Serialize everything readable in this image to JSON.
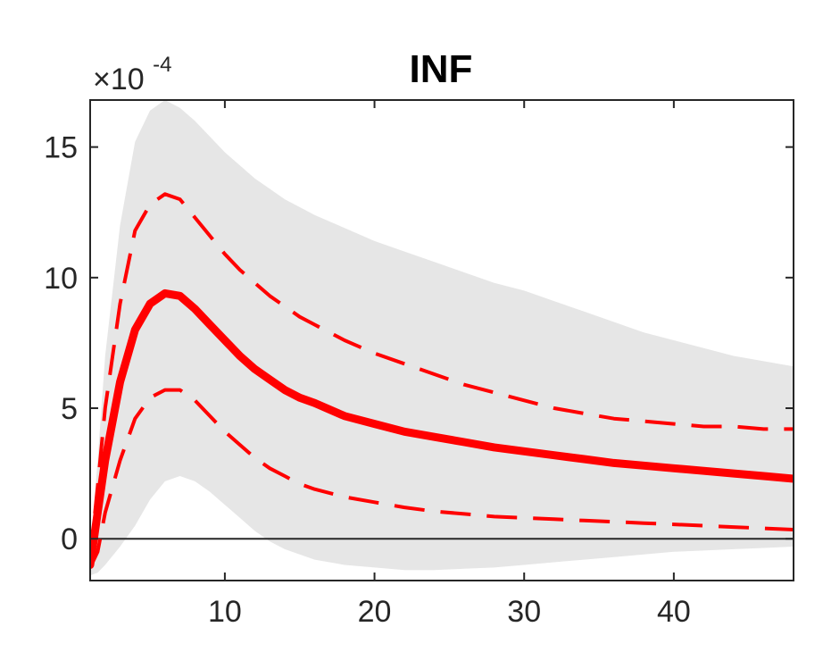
{
  "chart_data": {
    "type": "line",
    "title": "INF",
    "xlabel": "",
    "ylabel": "",
    "scale_multiplier": "×10",
    "scale_exponent": "-4",
    "xlim": [
      1,
      48
    ],
    "ylim": [
      -1.6,
      16.8
    ],
    "xticks": [
      10,
      20,
      30,
      40
    ],
    "yticks": [
      0,
      5,
      10,
      15
    ],
    "grid": false,
    "legend": "none",
    "zero_line": true,
    "colors": {
      "median": "#ff0000",
      "band_inner": "#ff0000",
      "band_outer": "#e6e6e6",
      "zero_line": "#262626",
      "axes": "#262626"
    },
    "x": [
      1,
      1.5,
      2,
      3,
      4,
      5,
      6,
      7,
      8,
      9,
      10,
      11,
      12,
      13,
      14,
      15,
      16,
      18,
      20,
      22,
      24,
      26,
      28,
      30,
      32,
      34,
      36,
      38,
      40,
      42,
      44,
      46,
      48
    ],
    "series": [
      {
        "role": "outer-band-upper",
        "values": [
          -0.6,
          3.0,
          7.0,
          12.0,
          15.2,
          16.4,
          16.8,
          16.5,
          16.0,
          15.4,
          14.8,
          14.3,
          13.8,
          13.4,
          13.0,
          12.7,
          12.4,
          11.9,
          11.4,
          11.0,
          10.6,
          10.2,
          9.8,
          9.5,
          9.1,
          8.7,
          8.3,
          7.9,
          7.6,
          7.3,
          7.0,
          6.8,
          6.6
        ]
      },
      {
        "role": "outer-band-lower",
        "values": [
          -1.4,
          -1.3,
          -1.0,
          -0.3,
          0.5,
          1.5,
          2.2,
          2.4,
          2.2,
          1.8,
          1.3,
          0.8,
          0.3,
          -0.1,
          -0.4,
          -0.6,
          -0.8,
          -1.0,
          -1.1,
          -1.2,
          -1.2,
          -1.15,
          -1.1,
          -1.0,
          -0.9,
          -0.8,
          -0.7,
          -0.6,
          -0.5,
          -0.45,
          -0.4,
          -0.35,
          -0.3
        ]
      },
      {
        "role": "upper-band",
        "style": "dashed",
        "values": [
          -0.8,
          2.0,
          5.0,
          9.0,
          11.8,
          12.8,
          13.2,
          13.0,
          12.3,
          11.6,
          10.9,
          10.3,
          9.8,
          9.3,
          8.9,
          8.5,
          8.2,
          7.6,
          7.1,
          6.7,
          6.3,
          5.9,
          5.6,
          5.3,
          5.0,
          4.8,
          4.6,
          4.5,
          4.4,
          4.3,
          4.3,
          4.2,
          4.2
        ]
      },
      {
        "role": "median",
        "style": "solid",
        "values": [
          -1.0,
          1.0,
          3.0,
          6.0,
          8.0,
          9.0,
          9.4,
          9.3,
          8.8,
          8.2,
          7.6,
          7.0,
          6.5,
          6.1,
          5.7,
          5.4,
          5.2,
          4.7,
          4.4,
          4.1,
          3.9,
          3.7,
          3.5,
          3.35,
          3.2,
          3.05,
          2.9,
          2.8,
          2.7,
          2.6,
          2.5,
          2.4,
          2.3
        ]
      },
      {
        "role": "lower-band",
        "style": "dashed",
        "values": [
          -1.1,
          -0.5,
          1.0,
          3.0,
          4.6,
          5.4,
          5.7,
          5.7,
          5.3,
          4.7,
          4.1,
          3.6,
          3.1,
          2.7,
          2.4,
          2.1,
          1.9,
          1.6,
          1.4,
          1.2,
          1.05,
          0.95,
          0.85,
          0.8,
          0.75,
          0.7,
          0.65,
          0.6,
          0.55,
          0.5,
          0.45,
          0.4,
          0.35
        ]
      }
    ]
  }
}
